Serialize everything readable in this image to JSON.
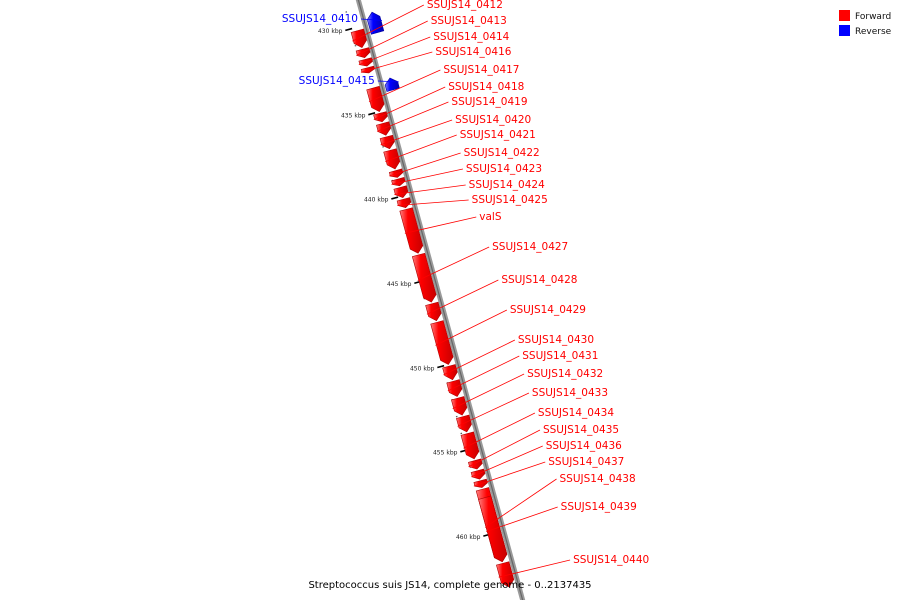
{
  "colors": {
    "forward": "#ff0000",
    "reverse": "#0000ff",
    "backbone": "#888888"
  },
  "legend": {
    "forward": "Forward",
    "reverse": "Reverse"
  },
  "footer": "Streptococcus suis JS14, complete genome - 0..2137435",
  "ticks": [
    {
      "label": "430 kbp",
      "pos_kbp": 430
    },
    {
      "label": "435 kbp",
      "pos_kbp": 435
    },
    {
      "label": "440 kbp",
      "pos_kbp": 440
    },
    {
      "label": "445 kbp",
      "pos_kbp": 445
    },
    {
      "label": "450 kbp",
      "pos_kbp": 450
    },
    {
      "label": "455 kbp",
      "pos_kbp": 455
    },
    {
      "label": "460 kbp",
      "pos_kbp": 460
    }
  ],
  "genes": [
    {
      "name": "SSUJS14_0410",
      "strand": "reverse",
      "start_kbp": 429.4,
      "end_kbp": 430.6
    },
    {
      "name": "SSUJS14_0412",
      "strand": "forward",
      "start_kbp": 430.2,
      "end_kbp": 431.2
    },
    {
      "name": "SSUJS14_0413",
      "strand": "forward",
      "start_kbp": 431.3,
      "end_kbp": 431.8
    },
    {
      "name": "SSUJS14_0414",
      "strand": "forward",
      "start_kbp": 431.9,
      "end_kbp": 432.3
    },
    {
      "name": "SSUJS14_0416",
      "strand": "forward",
      "start_kbp": 432.4,
      "end_kbp": 432.7
    },
    {
      "name": "SSUJS14_0415",
      "strand": "reverse",
      "start_kbp": 433.3,
      "end_kbp": 434.0
    },
    {
      "name": "SSUJS14_0417",
      "strand": "forward",
      "start_kbp": 433.6,
      "end_kbp": 435.0
    },
    {
      "name": "SSUJS14_0418",
      "strand": "forward",
      "start_kbp": 435.1,
      "end_kbp": 435.6
    },
    {
      "name": "SSUJS14_0419",
      "strand": "forward",
      "start_kbp": 435.7,
      "end_kbp": 436.4
    },
    {
      "name": "SSUJS14_0420",
      "strand": "forward",
      "start_kbp": 436.5,
      "end_kbp": 437.2
    },
    {
      "name": "SSUJS14_0421",
      "strand": "forward",
      "start_kbp": 437.3,
      "end_kbp": 438.4
    },
    {
      "name": "SSUJS14_0422",
      "strand": "forward",
      "start_kbp": 438.5,
      "end_kbp": 438.9
    },
    {
      "name": "SSUJS14_0423",
      "strand": "forward",
      "start_kbp": 439.0,
      "end_kbp": 439.4
    },
    {
      "name": "SSUJS14_0424",
      "strand": "forward",
      "start_kbp": 439.5,
      "end_kbp": 440.1
    },
    {
      "name": "SSUJS14_0425",
      "strand": "forward",
      "start_kbp": 440.2,
      "end_kbp": 440.7
    },
    {
      "name": "valS",
      "strand": "forward",
      "start_kbp": 440.8,
      "end_kbp": 443.4
    },
    {
      "name": "SSUJS14_0427",
      "strand": "forward",
      "start_kbp": 443.5,
      "end_kbp": 446.3
    },
    {
      "name": "SSUJS14_0428",
      "strand": "forward",
      "start_kbp": 446.4,
      "end_kbp": 447.4
    },
    {
      "name": "SSUJS14_0429",
      "strand": "forward",
      "start_kbp": 447.5,
      "end_kbp": 450.0
    },
    {
      "name": "SSUJS14_0430",
      "strand": "forward",
      "start_kbp": 450.1,
      "end_kbp": 450.9
    },
    {
      "name": "SSUJS14_0431",
      "strand": "forward",
      "start_kbp": 451.0,
      "end_kbp": 451.9
    },
    {
      "name": "SSUJS14_0432",
      "strand": "forward",
      "start_kbp": 452.0,
      "end_kbp": 453.0
    },
    {
      "name": "SSUJS14_0433",
      "strand": "forward",
      "start_kbp": 453.1,
      "end_kbp": 454.0
    },
    {
      "name": "SSUJS14_0434",
      "strand": "forward",
      "start_kbp": 454.1,
      "end_kbp": 455.6
    },
    {
      "name": "SSUJS14_0435",
      "strand": "forward",
      "start_kbp": 455.7,
      "end_kbp": 456.2
    },
    {
      "name": "SSUJS14_0436",
      "strand": "forward",
      "start_kbp": 456.3,
      "end_kbp": 456.8
    },
    {
      "name": "SSUJS14_0437",
      "strand": "forward",
      "start_kbp": 456.9,
      "end_kbp": 457.3
    },
    {
      "name": "SSUJS14_0438",
      "strand": "forward",
      "start_kbp": 457.4,
      "end_kbp": 461.7
    },
    {
      "name": "SSUJS14_0439",
      "strand": "forward",
      "start_kbp": 457.9,
      "end_kbp": 461.7
    },
    {
      "name": "SSUJS14_0440",
      "strand": "forward",
      "start_kbp": 461.8,
      "end_kbp": 463.2
    }
  ]
}
